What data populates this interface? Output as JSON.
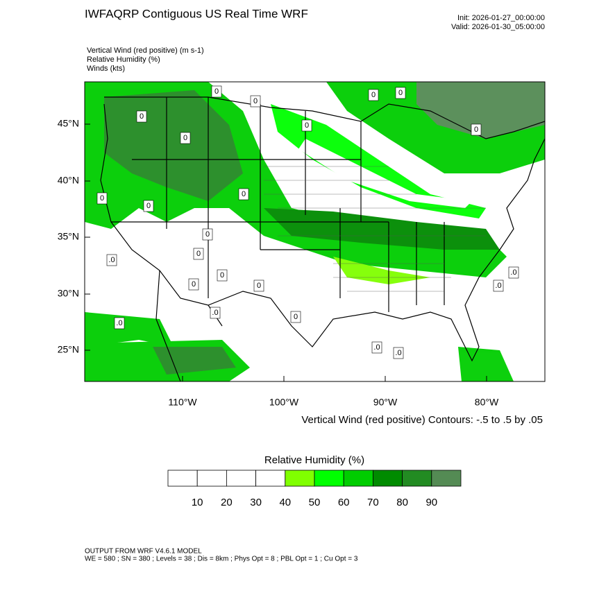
{
  "header": {
    "title": "IWFAQRP Contiguous US Real Time WRF",
    "init": "Init: 2026-01-27_00:00:00",
    "valid": "Valid: 2026-01-30_05:00:00"
  },
  "fields": [
    "Vertical Wind (red positive)   (m s-1)",
    "Relative Humidity   (%)",
    "Winds   (kts)"
  ],
  "map": {
    "lat_labels": [
      "45°N",
      "40°N",
      "35°N",
      "30°N",
      "25°N"
    ],
    "lon_labels": [
      "110°W",
      "100°W",
      "90°W",
      "80°W"
    ],
    "contour_info": "Vertical Wind (red positive) Contours: -.5 to .5 by .05",
    "contour_labels": [
      "0",
      "0",
      "0",
      "0",
      "0",
      "0",
      "0",
      "0",
      "0",
      "0",
      "0",
      "0",
      "0",
      "0",
      ".0",
      ".0",
      ".0",
      ".0",
      ".0",
      ".0",
      ".0",
      "0",
      "0",
      "0"
    ]
  },
  "colorbar": {
    "title": "Relative Humidity  (%)",
    "colors": [
      "#ffffff",
      "#ffffff",
      "#ffffff",
      "#ffffff",
      "#80ff00",
      "#00ff00",
      "#00cd00",
      "#008b00",
      "#228b22",
      "#548b54"
    ],
    "ticks": [
      10,
      20,
      30,
      40,
      50,
      60,
      70,
      80,
      90
    ]
  },
  "footer": [
    "OUTPUT FROM WRF V4.6.1 MODEL",
    "WE = 580 ; SN = 380 ; Levels = 38 ; Dis = 8km ; Phys Opt = 8 ; PBL Opt = 1 ; Cu Opt = 3"
  ]
}
